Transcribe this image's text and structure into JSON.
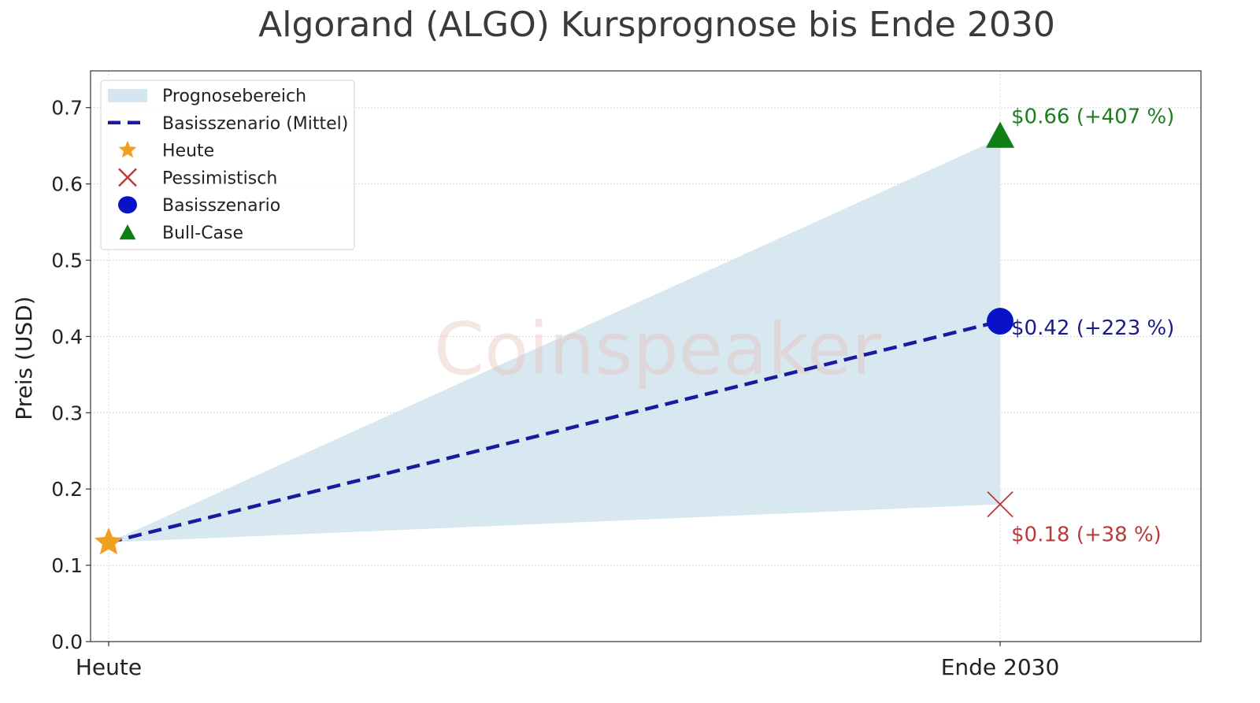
{
  "chart_data": {
    "type": "line",
    "title": "Algorand (ALGO) Kursprognose bis Ende 2030",
    "xlabel": "",
    "ylabel": "Preis (USD)",
    "categories": [
      "Heute",
      "Ende 2030"
    ],
    "ylim": [
      0.0,
      0.75
    ],
    "yticks": [
      "0.0",
      "0.1",
      "0.2",
      "0.3",
      "0.4",
      "0.5",
      "0.6",
      "0.7"
    ],
    "grid": true,
    "legend_position": "upper left",
    "series": [
      {
        "name": "Basisszenario (Mittel)",
        "kind": "dashed-line",
        "color": "#1a1a9e",
        "values": [
          0.13,
          0.42
        ]
      },
      {
        "name": "Prognosebereich",
        "kind": "area",
        "color": "#d4e6ef",
        "lower": [
          0.13,
          0.18
        ],
        "upper": [
          0.13,
          0.66
        ]
      },
      {
        "name": "Heute",
        "kind": "star-marker",
        "color": "#f0a020",
        "x": "Heute",
        "value": 0.13
      },
      {
        "name": "Pessimistisch",
        "kind": "x-marker",
        "color": "#c0393b",
        "x": "Ende 2030",
        "value": 0.18
      },
      {
        "name": "Basisszenario",
        "kind": "circle-marker",
        "color": "#0a12c8",
        "x": "Ende 2030",
        "value": 0.42
      },
      {
        "name": "Bull-Case",
        "kind": "triangle-marker",
        "color": "#0e7f12",
        "x": "Ende 2030",
        "value": 0.66
      }
    ],
    "annotations": [
      {
        "text": "$0.66 (+407 %)",
        "color": "#1e7e1e",
        "value": 0.66
      },
      {
        "text": "$0.42 (+223 %)",
        "color": "#1a1a8a",
        "value": 0.42
      },
      {
        "text": "$0.18 (+38 %)",
        "color": "#b83b3b",
        "value": 0.18
      }
    ],
    "watermark": "Coinspeaker"
  },
  "legend": {
    "items": [
      {
        "label": "Prognosebereich"
      },
      {
        "label": "Basisszenario (Mittel)"
      },
      {
        "label": "Heute"
      },
      {
        "label": "Pessimistisch"
      },
      {
        "label": "Basisszenario"
      },
      {
        "label": "Bull-Case"
      }
    ]
  }
}
